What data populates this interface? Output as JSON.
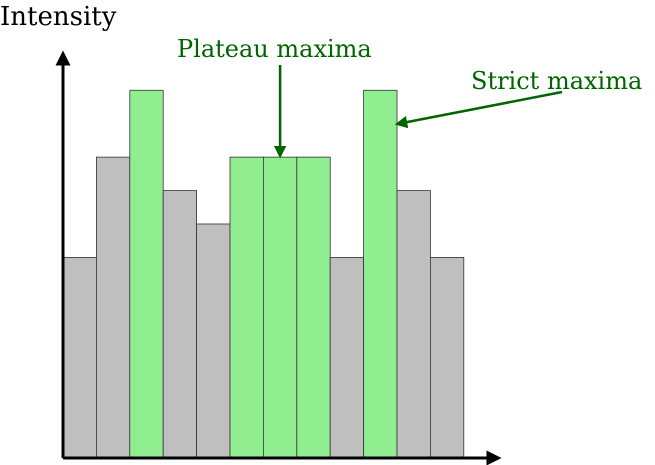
{
  "chart_data": {
    "type": "bar",
    "ylabel": "Intensity",
    "values": [
      6,
      9,
      11,
      8,
      7,
      9,
      9,
      9,
      6,
      11,
      8,
      6
    ],
    "ylim": [
      0,
      13.7
    ],
    "highlight": [
      false,
      false,
      true,
      false,
      false,
      true,
      true,
      true,
      false,
      true,
      false,
      false
    ],
    "annotations": [
      {
        "id": "plateau",
        "text": "Plateau maxima",
        "target_bar": 6
      },
      {
        "id": "strict",
        "text": "Strict maxima",
        "target_bar": 9
      }
    ]
  },
  "colors": {
    "bar_default": "#bfbfbf",
    "bar_highlight": "#90ee90",
    "annotation": "#006400",
    "axis": "#000000"
  }
}
